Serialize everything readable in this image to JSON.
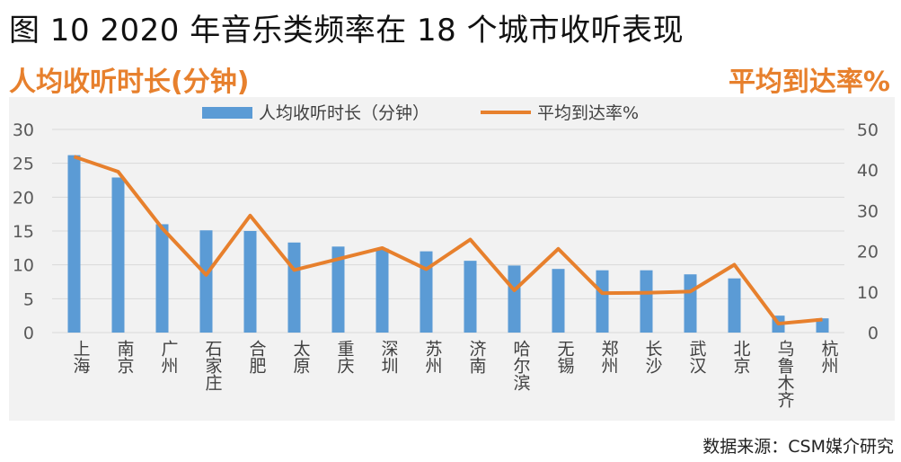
{
  "figure_title": "图 10  2020 年音乐类频率在 18 个城市收听表现",
  "left_axis_heading": "人均收听时长(分钟)",
  "right_axis_heading": "平均到达率%",
  "source_note": "数据来源：CSM媒介研究",
  "colors": {
    "bar": "#5b9bd5",
    "line": "#e7802d",
    "panel": "#f2f2f2",
    "grid": "#d9d9d9"
  },
  "chart_data": {
    "type": "bar",
    "categories": [
      "上海",
      "南京",
      "广州",
      "石家庄",
      "合肥",
      "太原",
      "重庆",
      "深圳",
      "苏州",
      "济南",
      "哈尔滨",
      "无锡",
      "郑州",
      "长沙",
      "武汉",
      "北京",
      "乌鲁木齐",
      "杭州"
    ],
    "series": [
      {
        "name": "人均收听时长（分钟）",
        "type": "bar",
        "axis": "left",
        "values": [
          26.2,
          22.9,
          16.0,
          15.1,
          15.0,
          13.3,
          12.7,
          12.4,
          12.0,
          10.6,
          9.9,
          9.4,
          9.2,
          9.2,
          8.6,
          8.0,
          2.5,
          2.1
        ]
      },
      {
        "name": "平均到达率%",
        "type": "line",
        "axis": "right",
        "values": [
          43.3,
          39.6,
          25.7,
          14.2,
          28.8,
          15.4,
          18.1,
          20.8,
          15.6,
          22.9,
          10.4,
          20.6,
          9.7,
          9.8,
          10.1,
          16.7,
          2.2,
          3.2
        ]
      }
    ],
    "y_left": {
      "min": 0,
      "max": 30,
      "ticks": [
        0,
        5,
        10,
        15,
        20,
        25,
        30
      ]
    },
    "y_right": {
      "min": 0,
      "max": 50,
      "ticks": [
        0,
        10,
        20,
        30,
        40,
        50
      ]
    },
    "grid": true,
    "legend_position": "top-center"
  }
}
